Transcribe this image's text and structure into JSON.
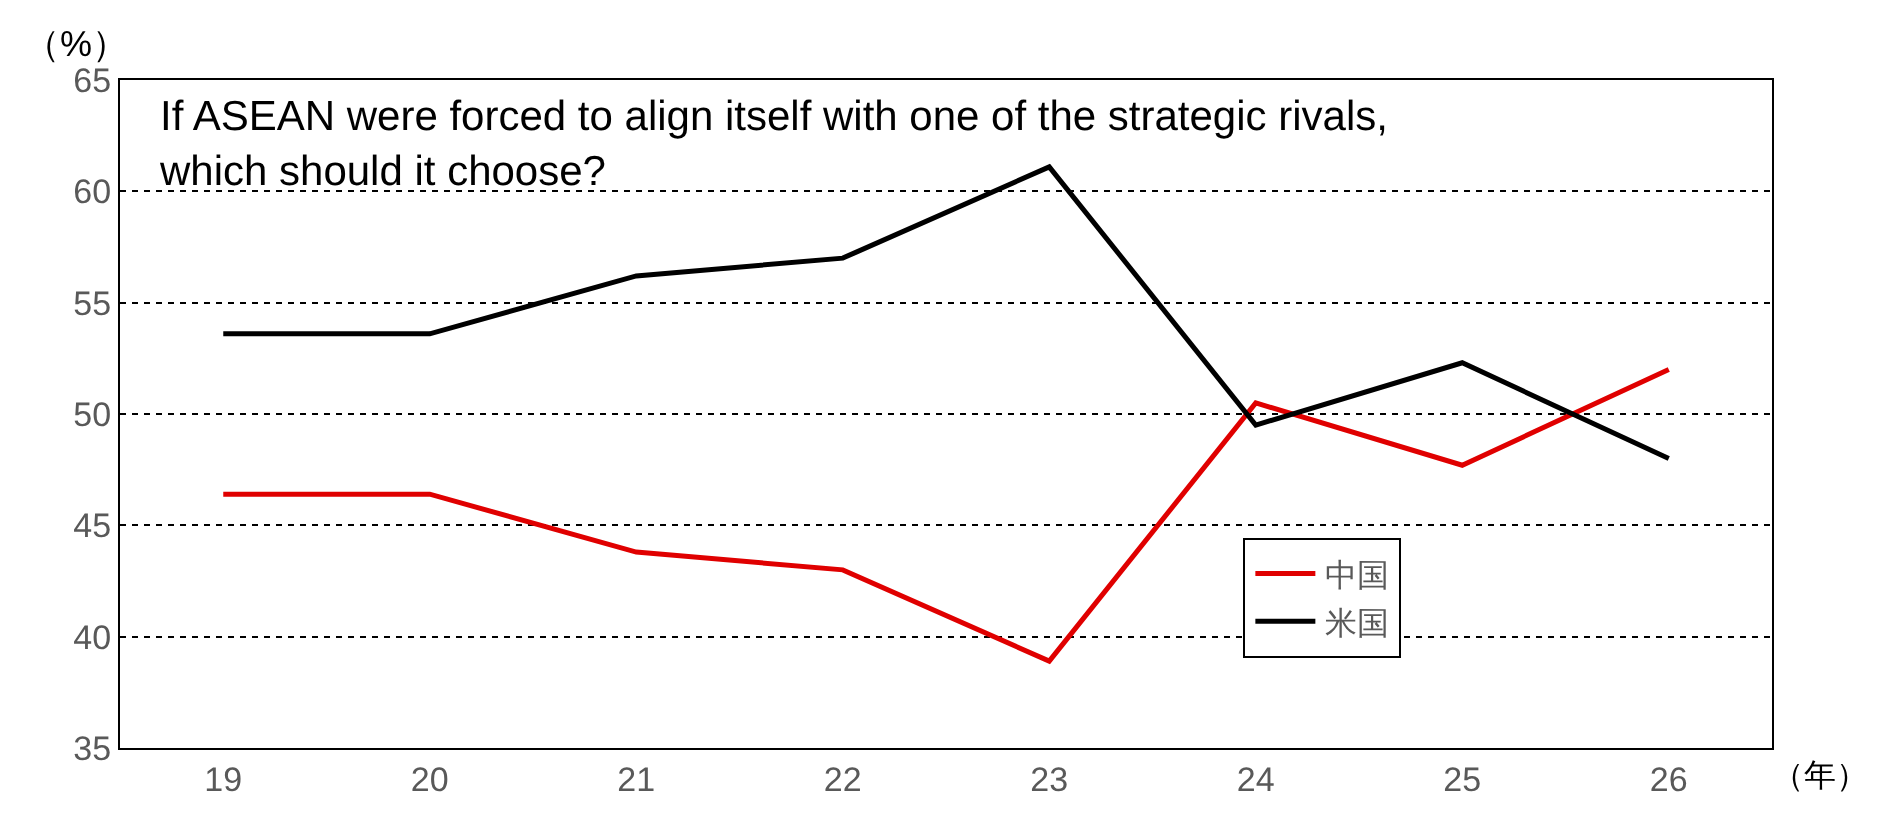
{
  "chart_data": {
    "type": "line",
    "title": "If ASEAN were forced to align itself with one of the strategic rivals,\nwhich should it choose?",
    "xlabel": "（年）",
    "ylabel": "（%）",
    "categories": [
      "19",
      "20",
      "21",
      "22",
      "23",
      "24",
      "25",
      "26"
    ],
    "series": [
      {
        "name": "中国",
        "color": "#e00000",
        "values": [
          46.4,
          46.4,
          43.8,
          43.0,
          38.9,
          50.5,
          47.7,
          52.0
        ]
      },
      {
        "name": "米国",
        "color": "#000000",
        "values": [
          53.6,
          53.6,
          56.2,
          57.0,
          61.1,
          49.5,
          52.3,
          48.0
        ]
      }
    ],
    "ylim": [
      35,
      65
    ],
    "yticks": [
      35,
      40,
      45,
      50,
      55,
      60,
      65
    ],
    "grid": "y",
    "legend": "bottom right",
    "marker": "none",
    "line_style": "solid"
  }
}
